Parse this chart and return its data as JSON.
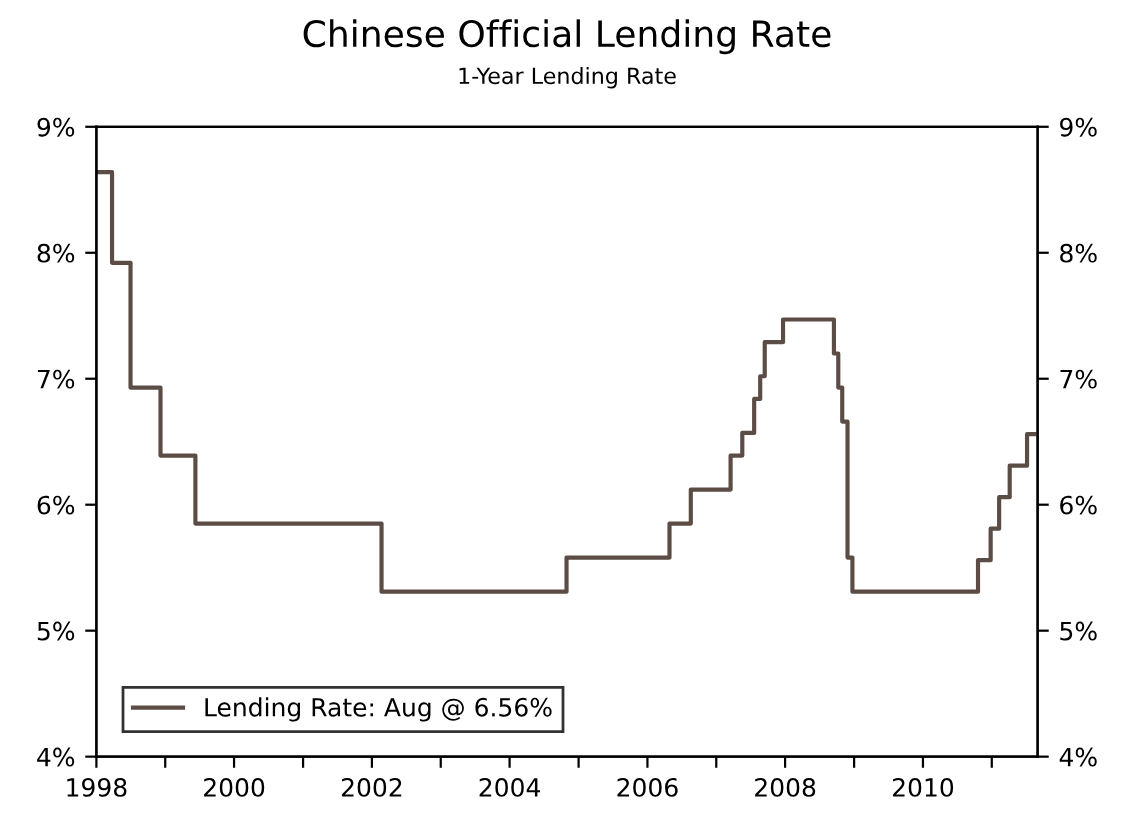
{
  "chart_data": {
    "type": "step",
    "title": "Chinese Official Lending Rate",
    "subtitle": "1-Year Lending Rate",
    "series": [
      {
        "name": "Lending Rate: Aug @ 6.56%",
        "color": "#5b4d45",
        "x": [
          "1998-01-01",
          "1998-03-25",
          "1998-07-01",
          "1998-12-07",
          "1999-06-10",
          "2002-02-21",
          "2004-10-29",
          "2006-04-28",
          "2006-08-19",
          "2007-03-18",
          "2007-05-19",
          "2007-07-21",
          "2007-08-22",
          "2007-09-15",
          "2007-12-21",
          "2008-09-16",
          "2008-10-09",
          "2008-10-30",
          "2008-11-27",
          "2008-12-23",
          "2010-10-20",
          "2010-12-26",
          "2011-02-09",
          "2011-04-06",
          "2011-07-07",
          "2011-08-15"
        ],
        "values": [
          8.64,
          7.92,
          6.93,
          6.39,
          5.85,
          5.31,
          5.58,
          5.85,
          6.12,
          6.39,
          6.57,
          6.84,
          7.02,
          7.29,
          7.47,
          7.2,
          6.93,
          6.66,
          5.58,
          5.31,
          5.56,
          5.81,
          6.06,
          6.31,
          6.56,
          6.56
        ]
      }
    ],
    "xlim": [
      "1998-01-01",
      "2011-09-01"
    ],
    "xticks": [
      {
        "value": "1998-01-01",
        "label": "1998"
      },
      {
        "value": "1999-01-01",
        "label": null
      },
      {
        "value": "2000-01-01",
        "label": "2000"
      },
      {
        "value": "2001-01-01",
        "label": null
      },
      {
        "value": "2002-01-01",
        "label": "2002"
      },
      {
        "value": "2003-01-01",
        "label": null
      },
      {
        "value": "2004-01-01",
        "label": "2004"
      },
      {
        "value": "2005-01-01",
        "label": null
      },
      {
        "value": "2006-01-01",
        "label": "2006"
      },
      {
        "value": "2007-01-01",
        "label": null
      },
      {
        "value": "2008-01-01",
        "label": "2008"
      },
      {
        "value": "2009-01-01",
        "label": null
      },
      {
        "value": "2010-01-01",
        "label": "2010"
      },
      {
        "value": "2011-01-01",
        "label": null
      }
    ],
    "ylim": [
      4,
      9
    ],
    "yticks": [
      {
        "value": 4,
        "label": "4%"
      },
      {
        "value": 5,
        "label": "5%"
      },
      {
        "value": 6,
        "label": "6%"
      },
      {
        "value": 7,
        "label": "7%"
      },
      {
        "value": 8,
        "label": "8%"
      },
      {
        "value": 9,
        "label": "9%"
      }
    ],
    "y2lim": [
      4,
      9
    ],
    "y2ticks": [
      {
        "value": 4,
        "label": "4%"
      },
      {
        "value": 5,
        "label": "5%"
      },
      {
        "value": 6,
        "label": "6%"
      },
      {
        "value": 7,
        "label": "7%"
      },
      {
        "value": 8,
        "label": "8%"
      },
      {
        "value": 9,
        "label": "9%"
      }
    ],
    "grid": false,
    "legend": "bottom left",
    "line_style": "solid"
  }
}
